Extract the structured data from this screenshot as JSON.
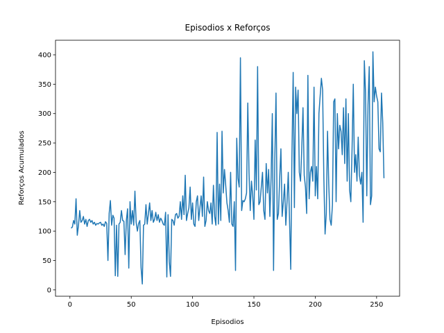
{
  "chart_data": {
    "type": "line",
    "title": "Episodios x Reforços",
    "xlabel": "Episodios",
    "ylabel": "Reforços Acumulados",
    "grid": false,
    "xlim": [
      -11.75,
      268.75
    ],
    "xticks": [
      0,
      50,
      100,
      150,
      200,
      250
    ],
    "ylim": [
      -10.8,
      424.8
    ],
    "yticks": [
      0,
      50,
      100,
      150,
      200,
      250,
      300,
      350,
      400
    ],
    "x": [
      1,
      2,
      3,
      4,
      5,
      6,
      7,
      8,
      9,
      10,
      11,
      12,
      13,
      14,
      15,
      16,
      17,
      18,
      19,
      20,
      21,
      22,
      23,
      24,
      25,
      26,
      27,
      28,
      29,
      30,
      31,
      32,
      33,
      34,
      35,
      36,
      37,
      38,
      39,
      40,
      41,
      42,
      43,
      44,
      45,
      46,
      47,
      48,
      49,
      50,
      51,
      52,
      53,
      54,
      55,
      56,
      57,
      58,
      59,
      60,
      61,
      62,
      63,
      64,
      65,
      66,
      67,
      68,
      69,
      70,
      71,
      72,
      73,
      74,
      75,
      76,
      77,
      78,
      79,
      80,
      81,
      82,
      83,
      84,
      85,
      86,
      87,
      88,
      89,
      90,
      91,
      92,
      93,
      94,
      95,
      96,
      97,
      98,
      99,
      100,
      101,
      102,
      103,
      104,
      105,
      106,
      107,
      108,
      109,
      110,
      111,
      112,
      113,
      114,
      115,
      116,
      117,
      118,
      119,
      120,
      121,
      122,
      123,
      124,
      125,
      126,
      127,
      128,
      129,
      130,
      131,
      132,
      133,
      134,
      135,
      136,
      137,
      138,
      139,
      140,
      141,
      142,
      143,
      144,
      145,
      146,
      147,
      148,
      149,
      150,
      151,
      152,
      153,
      154,
      155,
      156,
      157,
      158,
      159,
      160,
      161,
      162,
      163,
      164,
      165,
      166,
      167,
      168,
      169,
      170,
      171,
      172,
      173,
      174,
      175,
      176,
      177,
      178,
      179,
      180,
      181,
      182,
      183,
      184,
      185,
      186,
      187,
      188,
      189,
      190,
      191,
      192,
      193,
      194,
      195,
      196,
      197,
      198,
      199,
      200,
      201,
      202,
      203,
      204,
      205,
      206,
      207,
      208,
      209,
      210,
      211,
      212,
      213,
      214,
      215,
      216,
      217,
      218,
      219,
      220,
      221,
      222,
      223,
      224,
      225,
      226,
      227,
      228,
      229,
      230,
      231,
      232,
      233,
      234,
      235,
      236,
      237,
      238,
      239,
      240,
      241,
      242,
      243,
      244,
      245,
      246,
      247,
      248,
      249,
      250,
      251,
      252,
      253,
      254,
      255,
      256
    ],
    "series": [
      {
        "color": "#1f77b4",
        "values": [
          105,
          107,
          118,
          112,
          155,
          93,
          110,
          135,
          115,
          118,
          125,
          112,
          120,
          108,
          118,
          120,
          115,
          118,
          112,
          115,
          110,
          113,
          112,
          114,
          115,
          110,
          112,
          108,
          116,
          113,
          50,
          130,
          152,
          110,
          127,
          122,
          24,
          110,
          23,
          112,
          115,
          135,
          118,
          117,
          60,
          118,
          138,
          37,
          150,
          112,
          135,
          110,
          168,
          115,
          100,
          113,
          118,
          38,
          10,
          110,
          112,
          145,
          112,
          130,
          148,
          118,
          135,
          115,
          120,
          132,
          118,
          128,
          115,
          122,
          118,
          112,
          110,
          132,
          22,
          128,
          48,
          23,
          120,
          118,
          110,
          128,
          130,
          122,
          125,
          150,
          120,
          160,
          128,
          195,
          118,
          130,
          140,
          175,
          120,
          148,
          112,
          108,
          150,
          160,
          118,
          140,
          160,
          125,
          192,
          108,
          118,
          150,
          135,
          130,
          148,
          112,
          178,
          125,
          110,
          268,
          112,
          180,
          118,
          270,
          165,
          205,
          178,
          148,
          135,
          115,
          200,
          112,
          108,
          150,
          33,
          258,
          190,
          175,
          395,
          135,
          152,
          150,
          155,
          165,
          318,
          200,
          135,
          185,
          160,
          120,
          255,
          170,
          380,
          145,
          150,
          175,
          200,
          135,
          120,
          215,
          165,
          205,
          125,
          190,
          300,
          33,
          220,
          335,
          120,
          130,
          190,
          240,
          125,
          150,
          180,
          110,
          150,
          200,
          120,
          35,
          230,
          370,
          140,
          345,
          300,
          340,
          200,
          185,
          240,
          310,
          195,
          175,
          130,
          365,
          155,
          200,
          210,
          185,
          345,
          160,
          210,
          155,
          300,
          330,
          360,
          340,
          190,
          95,
          130,
          270,
          180,
          120,
          110,
          145,
          320,
          325,
          150,
          300,
          240,
          280,
          270,
          230,
          310,
          215,
          325,
          185,
          300,
          170,
          150,
          240,
          350,
          200,
          230,
          185,
          260,
          195,
          180,
          200,
          115,
          390,
          335,
          160,
          315,
          380,
          145,
          160,
          405,
          320,
          345,
          330,
          320,
          240,
          235,
          335,
          285,
          190
        ]
      }
    ]
  }
}
